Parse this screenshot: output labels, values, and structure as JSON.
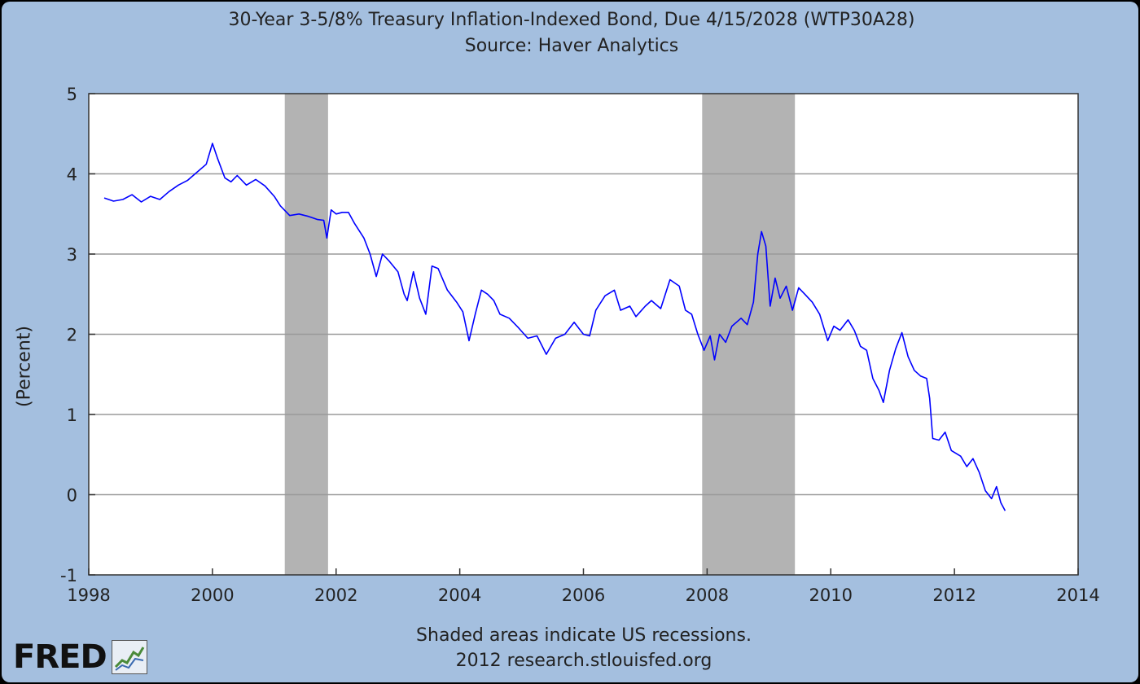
{
  "chart_data": {
    "type": "line",
    "title": "30-Year 3-5/8% Treasury Inflation-Indexed Bond, Due 4/15/2028 (WTP30A28)",
    "subtitle": "Source: Haver Analytics",
    "ylabel": "(Percent)",
    "xlabel": "",
    "xlim": [
      1998,
      2014
    ],
    "ylim": [
      -1,
      5
    ],
    "x_ticks": [
      "1998",
      "2000",
      "2002",
      "2004",
      "2006",
      "2008",
      "2010",
      "2012",
      "2014"
    ],
    "y_ticks": [
      "-1",
      "0",
      "1",
      "2",
      "3",
      "4",
      "5"
    ],
    "grid": true,
    "recessions": [
      {
        "start": 2001.17,
        "end": 2001.87
      },
      {
        "start": 2007.92,
        "end": 2009.42
      }
    ],
    "series": [
      {
        "color": "#0000ff",
        "points": [
          [
            1998.25,
            3.7
          ],
          [
            1998.4,
            3.66
          ],
          [
            1998.55,
            3.68
          ],
          [
            1998.7,
            3.74
          ],
          [
            1998.85,
            3.65
          ],
          [
            1999.0,
            3.72
          ],
          [
            1999.15,
            3.68
          ],
          [
            1999.3,
            3.78
          ],
          [
            1999.45,
            3.86
          ],
          [
            1999.6,
            3.92
          ],
          [
            1999.75,
            4.02
          ],
          [
            1999.9,
            4.12
          ],
          [
            2000.0,
            4.38
          ],
          [
            2000.08,
            4.2
          ],
          [
            2000.2,
            3.95
          ],
          [
            2000.3,
            3.9
          ],
          [
            2000.4,
            3.98
          ],
          [
            2000.55,
            3.86
          ],
          [
            2000.7,
            3.93
          ],
          [
            2000.85,
            3.85
          ],
          [
            2001.0,
            3.72
          ],
          [
            2001.1,
            3.6
          ],
          [
            2001.25,
            3.48
          ],
          [
            2001.4,
            3.5
          ],
          [
            2001.55,
            3.47
          ],
          [
            2001.7,
            3.43
          ],
          [
            2001.8,
            3.42
          ],
          [
            2001.85,
            3.2
          ],
          [
            2001.92,
            3.55
          ],
          [
            2002.0,
            3.5
          ],
          [
            2002.1,
            3.52
          ],
          [
            2002.2,
            3.52
          ],
          [
            2002.3,
            3.38
          ],
          [
            2002.45,
            3.2
          ],
          [
            2002.55,
            3.0
          ],
          [
            2002.65,
            2.72
          ],
          [
            2002.75,
            3.0
          ],
          [
            2002.85,
            2.92
          ],
          [
            2003.0,
            2.78
          ],
          [
            2003.1,
            2.5
          ],
          [
            2003.15,
            2.42
          ],
          [
            2003.25,
            2.78
          ],
          [
            2003.35,
            2.45
          ],
          [
            2003.45,
            2.25
          ],
          [
            2003.55,
            2.85
          ],
          [
            2003.65,
            2.82
          ],
          [
            2003.8,
            2.55
          ],
          [
            2003.95,
            2.4
          ],
          [
            2004.05,
            2.28
          ],
          [
            2004.15,
            1.92
          ],
          [
            2004.25,
            2.25
          ],
          [
            2004.35,
            2.55
          ],
          [
            2004.45,
            2.5
          ],
          [
            2004.55,
            2.42
          ],
          [
            2004.65,
            2.25
          ],
          [
            2004.8,
            2.2
          ],
          [
            2004.95,
            2.08
          ],
          [
            2005.1,
            1.95
          ],
          [
            2005.25,
            1.98
          ],
          [
            2005.4,
            1.75
          ],
          [
            2005.55,
            1.95
          ],
          [
            2005.7,
            2.0
          ],
          [
            2005.85,
            2.15
          ],
          [
            2006.0,
            2.0
          ],
          [
            2006.1,
            1.98
          ],
          [
            2006.2,
            2.3
          ],
          [
            2006.35,
            2.48
          ],
          [
            2006.5,
            2.55
          ],
          [
            2006.6,
            2.3
          ],
          [
            2006.75,
            2.35
          ],
          [
            2006.85,
            2.22
          ],
          [
            2007.0,
            2.35
          ],
          [
            2007.1,
            2.42
          ],
          [
            2007.25,
            2.32
          ],
          [
            2007.4,
            2.68
          ],
          [
            2007.55,
            2.6
          ],
          [
            2007.65,
            2.3
          ],
          [
            2007.75,
            2.25
          ],
          [
            2007.85,
            2.0
          ],
          [
            2007.95,
            1.8
          ],
          [
            2008.05,
            1.98
          ],
          [
            2008.12,
            1.68
          ],
          [
            2008.2,
            2.0
          ],
          [
            2008.3,
            1.9
          ],
          [
            2008.4,
            2.1
          ],
          [
            2008.55,
            2.2
          ],
          [
            2008.65,
            2.12
          ],
          [
            2008.75,
            2.4
          ],
          [
            2008.82,
            3.0
          ],
          [
            2008.88,
            3.28
          ],
          [
            2008.95,
            3.1
          ],
          [
            2009.02,
            2.35
          ],
          [
            2009.1,
            2.7
          ],
          [
            2009.18,
            2.45
          ],
          [
            2009.28,
            2.6
          ],
          [
            2009.38,
            2.3
          ],
          [
            2009.48,
            2.58
          ],
          [
            2009.58,
            2.5
          ],
          [
            2009.7,
            2.4
          ],
          [
            2009.82,
            2.25
          ],
          [
            2009.95,
            1.92
          ],
          [
            2010.05,
            2.1
          ],
          [
            2010.15,
            2.05
          ],
          [
            2010.28,
            2.18
          ],
          [
            2010.38,
            2.05
          ],
          [
            2010.48,
            1.85
          ],
          [
            2010.58,
            1.8
          ],
          [
            2010.68,
            1.45
          ],
          [
            2010.78,
            1.3
          ],
          [
            2010.85,
            1.15
          ],
          [
            2010.95,
            1.55
          ],
          [
            2011.05,
            1.82
          ],
          [
            2011.15,
            2.02
          ],
          [
            2011.25,
            1.72
          ],
          [
            2011.35,
            1.55
          ],
          [
            2011.45,
            1.48
          ],
          [
            2011.55,
            1.45
          ],
          [
            2011.6,
            1.2
          ],
          [
            2011.65,
            0.7
          ],
          [
            2011.75,
            0.68
          ],
          [
            2011.85,
            0.78
          ],
          [
            2011.95,
            0.55
          ],
          [
            2012.1,
            0.48
          ],
          [
            2012.2,
            0.35
          ],
          [
            2012.3,
            0.45
          ],
          [
            2012.4,
            0.28
          ],
          [
            2012.5,
            0.05
          ],
          [
            2012.6,
            -0.05
          ],
          [
            2012.68,
            0.1
          ],
          [
            2012.75,
            -0.1
          ],
          [
            2012.82,
            -0.2
          ]
        ]
      }
    ],
    "footnote": "Shaded areas indicate US recessions.",
    "credit": "2012 research.stlouisfed.org"
  },
  "logo_text": "FRED"
}
